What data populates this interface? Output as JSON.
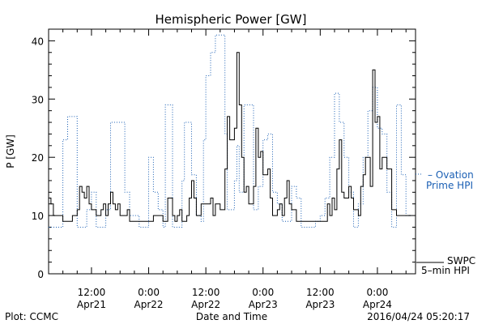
{
  "chart_data": {
    "type": "line",
    "title": "Hemispheric Power [GW]",
    "ylabel": "P [GW]",
    "xlabel": "Date and Time",
    "ylim": [
      0,
      42
    ],
    "xlim": [
      -9,
      68
    ],
    "x_unit": "hours from 2016-04-21 00:00 UT",
    "y_ticks": [
      "0",
      "10",
      "20",
      "30",
      "40"
    ],
    "y_tick_values": [
      0,
      10,
      20,
      30,
      40
    ],
    "x_ticks": [
      {
        "x": 0,
        "time": "12:00",
        "date": "Apr21"
      },
      {
        "x": 12,
        "time": "0:00",
        "date": "Apr22"
      },
      {
        "x": 24,
        "time": "12:00",
        "date": "Apr22"
      },
      {
        "x": 36,
        "time": "0:00",
        "date": "Apr23"
      },
      {
        "x": 48,
        "time": "12:00",
        "date": "Apr23"
      },
      {
        "x": 60,
        "time": "0:00",
        "date": "Apr24"
      }
    ],
    "grid": false,
    "legend_position": "right",
    "series": [
      {
        "name": "SWPC 5-min HPI",
        "color": "#000000",
        "style": "solid",
        "points": [
          [
            -9,
            13
          ],
          [
            -8.5,
            12
          ],
          [
            -8,
            10
          ],
          [
            -7,
            10
          ],
          [
            -6,
            9
          ],
          [
            -4.5,
            9
          ],
          [
            -4,
            10
          ],
          [
            -3,
            11
          ],
          [
            -2.5,
            15
          ],
          [
            -2,
            14
          ],
          [
            -1.5,
            13
          ],
          [
            -1,
            15
          ],
          [
            -0.5,
            12
          ],
          [
            0,
            11
          ],
          [
            1,
            10
          ],
          [
            2,
            11
          ],
          [
            2.5,
            12
          ],
          [
            3,
            10
          ],
          [
            3.5,
            12
          ],
          [
            4,
            14
          ],
          [
            4.5,
            12
          ],
          [
            5,
            11
          ],
          [
            5.5,
            12
          ],
          [
            6,
            10
          ],
          [
            7,
            10
          ],
          [
            7.5,
            11
          ],
          [
            8,
            9
          ],
          [
            9,
            9
          ],
          [
            12,
            9
          ],
          [
            13,
            10
          ],
          [
            14,
            10
          ],
          [
            15,
            9
          ],
          [
            16,
            13
          ],
          [
            17,
            10
          ],
          [
            17.5,
            9
          ],
          [
            18,
            10
          ],
          [
            18.5,
            11
          ],
          [
            19,
            9
          ],
          [
            20,
            10
          ],
          [
            20.5,
            13
          ],
          [
            21,
            16
          ],
          [
            21.5,
            13
          ],
          [
            22,
            10
          ],
          [
            23,
            12
          ],
          [
            24,
            12
          ],
          [
            25,
            13
          ],
          [
            25.5,
            10
          ],
          [
            26,
            12
          ],
          [
            27,
            11
          ],
          [
            27.5,
            11
          ],
          [
            28,
            18
          ],
          [
            28.5,
            27
          ],
          [
            29,
            23
          ],
          [
            30,
            25
          ],
          [
            30.5,
            38
          ],
          [
            31,
            29
          ],
          [
            31.5,
            20
          ],
          [
            32,
            14
          ],
          [
            32.5,
            15
          ],
          [
            33,
            12
          ],
          [
            34,
            15
          ],
          [
            34.5,
            25
          ],
          [
            35,
            20
          ],
          [
            35.5,
            21
          ],
          [
            36,
            17
          ],
          [
            37,
            18
          ],
          [
            37.5,
            13
          ],
          [
            38,
            10
          ],
          [
            39,
            11
          ],
          [
            39.5,
            12
          ],
          [
            40,
            10
          ],
          [
            40.5,
            13
          ],
          [
            41,
            16
          ],
          [
            41.5,
            12
          ],
          [
            42,
            11
          ],
          [
            43,
            9
          ],
          [
            44,
            9
          ],
          [
            49,
            9
          ],
          [
            49.5,
            12
          ],
          [
            50,
            10
          ],
          [
            50.5,
            13
          ],
          [
            51,
            11
          ],
          [
            51.5,
            18
          ],
          [
            52,
            23
          ],
          [
            52.5,
            14
          ],
          [
            53,
            13
          ],
          [
            54,
            15
          ],
          [
            54.5,
            13
          ],
          [
            55,
            11
          ],
          [
            56,
            10
          ],
          [
            56.5,
            15
          ],
          [
            57,
            17
          ],
          [
            57.5,
            20
          ],
          [
            58,
            20
          ],
          [
            58.5,
            15
          ],
          [
            59,
            35
          ],
          [
            59.5,
            26
          ],
          [
            60,
            27
          ],
          [
            60.5,
            18
          ],
          [
            61,
            20
          ],
          [
            62,
            18
          ],
          [
            63,
            11
          ],
          [
            64,
            10
          ],
          [
            65,
            10
          ],
          [
            66,
            10
          ],
          [
            67,
            10
          ]
        ]
      },
      {
        "name": "Ovation Prime HPI",
        "color": "#1a5fb4",
        "style": "dotted",
        "points": [
          [
            -9,
            8
          ],
          [
            -6.5,
            8
          ],
          [
            -6,
            23
          ],
          [
            -5,
            27
          ],
          [
            -4,
            27
          ],
          [
            -3,
            8
          ],
          [
            -1.5,
            8
          ],
          [
            -1,
            11
          ],
          [
            0,
            14
          ],
          [
            1,
            8
          ],
          [
            2,
            8
          ],
          [
            3,
            11
          ],
          [
            4,
            26
          ],
          [
            5,
            26
          ],
          [
            6,
            26
          ],
          [
            7,
            14
          ],
          [
            8,
            10
          ],
          [
            9,
            10
          ],
          [
            10,
            8
          ],
          [
            11,
            8
          ],
          [
            12,
            20
          ],
          [
            13,
            14
          ],
          [
            14,
            11
          ],
          [
            15,
            8
          ],
          [
            15.5,
            29
          ],
          [
            16,
            29
          ],
          [
            17,
            8
          ],
          [
            18,
            8
          ],
          [
            19,
            16
          ],
          [
            19.5,
            26
          ],
          [
            20,
            26
          ],
          [
            21,
            17
          ],
          [
            22,
            10
          ],
          [
            23,
            9
          ],
          [
            23.5,
            23
          ],
          [
            24,
            34
          ],
          [
            25,
            38
          ],
          [
            26,
            41
          ],
          [
            27,
            41
          ],
          [
            28,
            24
          ],
          [
            28.5,
            11
          ],
          [
            29,
            11
          ],
          [
            30,
            16
          ],
          [
            30.5,
            22
          ],
          [
            31,
            14
          ],
          [
            32,
            29
          ],
          [
            33,
            29
          ],
          [
            34,
            11
          ],
          [
            35,
            15
          ],
          [
            36,
            23
          ],
          [
            37,
            24
          ],
          [
            38,
            14
          ],
          [
            39,
            12
          ],
          [
            40,
            9
          ],
          [
            41,
            9
          ],
          [
            42,
            15
          ],
          [
            43,
            13
          ],
          [
            44,
            8
          ],
          [
            45,
            8
          ],
          [
            46,
            8
          ],
          [
            47,
            9
          ],
          [
            48,
            10
          ],
          [
            49,
            13
          ],
          [
            50,
            20
          ],
          [
            51,
            31
          ],
          [
            52,
            26
          ],
          [
            53,
            20
          ],
          [
            54,
            14
          ],
          [
            55,
            8
          ],
          [
            56,
            12
          ],
          [
            57,
            20
          ],
          [
            58,
            28
          ],
          [
            59,
            32
          ],
          [
            60,
            25
          ],
          [
            61,
            24
          ],
          [
            62,
            14
          ],
          [
            63,
            8
          ],
          [
            64,
            29
          ],
          [
            65,
            17
          ],
          [
            66,
            10
          ],
          [
            67,
            10
          ]
        ]
      }
    ],
    "annotations": {
      "ovation_legend_line1": "– Ovation",
      "ovation_legend_line2": "Prime HPI",
      "swpc_legend_line1": "SWPC",
      "swpc_legend_line2": "5–min HPI",
      "plot_credit": "Plot: CCMC",
      "timestamp": "2016/04/24 05:20:17"
    }
  }
}
